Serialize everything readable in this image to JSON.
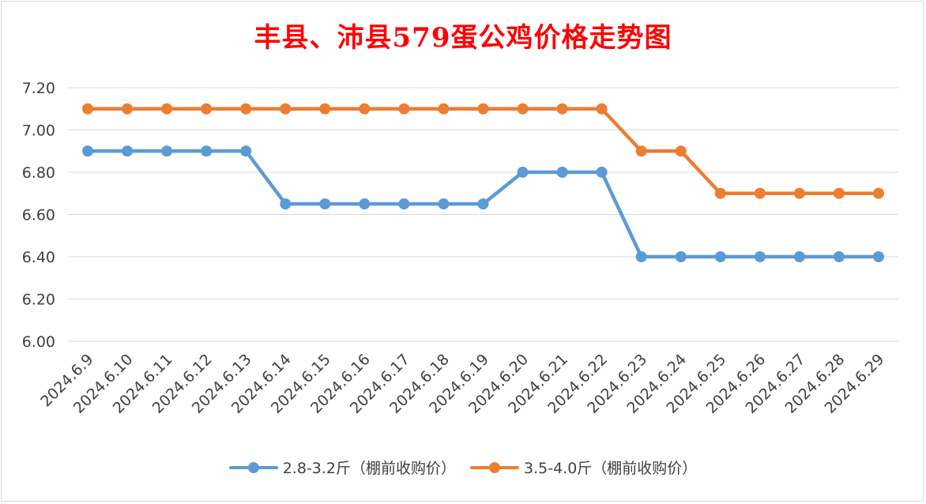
{
  "chart_data": {
    "type": "line",
    "title": "丰县、沛县579蛋公鸡价格走势图",
    "categories": [
      "2024.6.9",
      "2024.6.10",
      "2024.6.11",
      "2024.6.12",
      "2024.6.13",
      "2024.6.14",
      "2024.6.15",
      "2024.6.16",
      "2024.6.17",
      "2024.6.18",
      "2024.6.19",
      "2024.6.20",
      "2024.6.21",
      "2024.6.22",
      "2024.6.23",
      "2024.6.24",
      "2024.6.25",
      "2024.6.26",
      "2024.6.27",
      "2024.6.28",
      "2024.6.29"
    ],
    "series": [
      {
        "name": "2.8-3.2斤（棚前收购价）",
        "color": "#5b9bd5",
        "values": [
          6.9,
          6.9,
          6.9,
          6.9,
          6.9,
          6.65,
          6.65,
          6.65,
          6.65,
          6.65,
          6.65,
          6.8,
          6.8,
          6.8,
          6.4,
          6.4,
          6.4,
          6.4,
          6.4,
          6.4,
          6.4
        ]
      },
      {
        "name": "3.5-4.0斤（棚前收购价）",
        "color": "#ed7d31",
        "values": [
          7.1,
          7.1,
          7.1,
          7.1,
          7.1,
          7.1,
          7.1,
          7.1,
          7.1,
          7.1,
          7.1,
          7.1,
          7.1,
          7.1,
          6.9,
          6.9,
          6.7,
          6.7,
          6.7,
          6.7,
          6.7
        ]
      }
    ],
    "ylim": [
      6.0,
      7.2
    ],
    "yticks": [
      "6.00",
      "6.20",
      "6.40",
      "6.60",
      "6.80",
      "7.00",
      "7.20"
    ],
    "grid": true,
    "legend": "bottom",
    "title_color": "#ff0000"
  }
}
